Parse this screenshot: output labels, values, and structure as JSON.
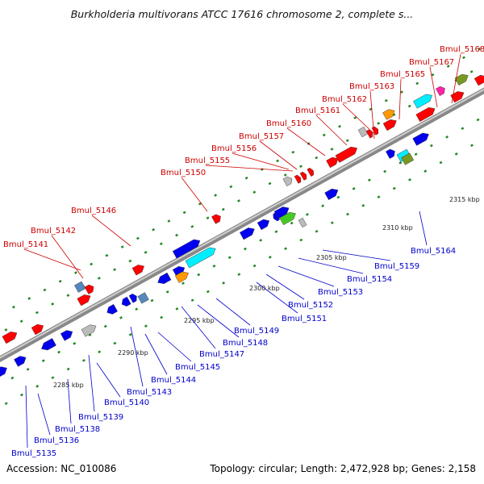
{
  "title": "Burkholderia multivorans ATCC 17616 chromosome 2, complete s...",
  "footer": {
    "accession": "Accession: NC_010086",
    "topology": "Topology: circular; Length: 2,472,928 bp; Genes: 2,158"
  },
  "colors": {
    "backbone": "#888888",
    "label_top": "#cc0000",
    "label_bottom": "#0000cc",
    "tick": "#228822",
    "gene_red": "#ff0000",
    "gene_blue": "#0000ee",
    "gene_cyan": "#00eeff",
    "gene_green": "#44cc22",
    "gene_orange": "#ff9900",
    "gene_magenta": "#ff22aa",
    "gene_olive": "#779922",
    "gene_gray": "#bbbbbb",
    "gene_steel": "#5588bb"
  },
  "scale_labels": [
    "2285 kbp",
    "2290 kbp",
    "2295 kbp",
    "2300 kbp",
    "2305 kbp",
    "2310 kbp",
    "2315 kbp"
  ],
  "top_labels": [
    "Bmul_5141",
    "Bmul_5142",
    "Bmul_5146",
    "Bmul_5150",
    "Bmul_5155",
    "Bmul_5156",
    "Bmul_5157",
    "Bmul_5160",
    "Bmul_5161",
    "Bmul_5162",
    "Bmul_5163",
    "Bmul_5165",
    "Bmul_5167",
    "Bmul_5168"
  ],
  "bottom_labels": [
    "Bmul_5135",
    "Bmul_5136",
    "Bmul_5138",
    "Bmul_5139",
    "Bmul_5140",
    "Bmul_5143",
    "Bmul_5144",
    "Bmul_5145",
    "Bmul_5147",
    "Bmul_5148",
    "Bmul_5149",
    "Bmul_5151",
    "Bmul_5152",
    "Bmul_5153",
    "Bmul_5154",
    "Bmul_5159",
    "Bmul_5164"
  ]
}
